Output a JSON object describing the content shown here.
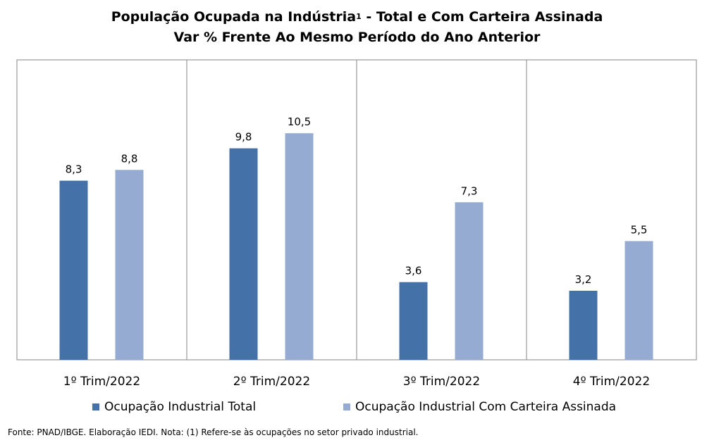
{
  "chart": {
    "title_main": "População Ocupada na Indústria",
    "title_sup": "1",
    "title_rest": " - Total e Com Carteira Assinada",
    "subtitle": "Var % Frente Ao Mesmo Período do Ano Anterior",
    "footnote": "Fonte: PNAD/IBGE. Elaboração IEDI. Nota: (1) Refere-se às ocupações no setor privado industrial."
  },
  "legend": [
    {
      "label": "Ocupação Industrial Total",
      "color": "#4472A8"
    },
    {
      "label": "Ocupação Industrial Com Carteira Assinada",
      "color": "#95ABD2"
    }
  ],
  "chart_data": {
    "type": "bar",
    "title": "População Ocupada na Indústria¹ - Total e Com Carteira Assinada",
    "subtitle": "Var % Frente Ao Mesmo Período do Ano Anterior",
    "categories": [
      "1º Trim/2022",
      "2º Trim/2022",
      "3º Trim/2022",
      "4º Trim/2022"
    ],
    "series": [
      {
        "name": "Ocupação Industrial Total",
        "values": [
          8.3,
          9.8,
          3.6,
          3.2
        ],
        "labels": [
          "8,3",
          "9,8",
          "3,6",
          "3,2"
        ],
        "color": "#4472A8"
      },
      {
        "name": "Ocupação Industrial Com Carteira Assinada",
        "values": [
          8.8,
          10.5,
          7.3,
          5.5
        ],
        "labels": [
          "8,8",
          "10,5",
          "7,3",
          "5,5"
        ],
        "color": "#95ABD2"
      }
    ],
    "ylim": [
      0,
      13.9
    ],
    "grid": false,
    "legend_position": "bottom",
    "category_separators": true
  }
}
